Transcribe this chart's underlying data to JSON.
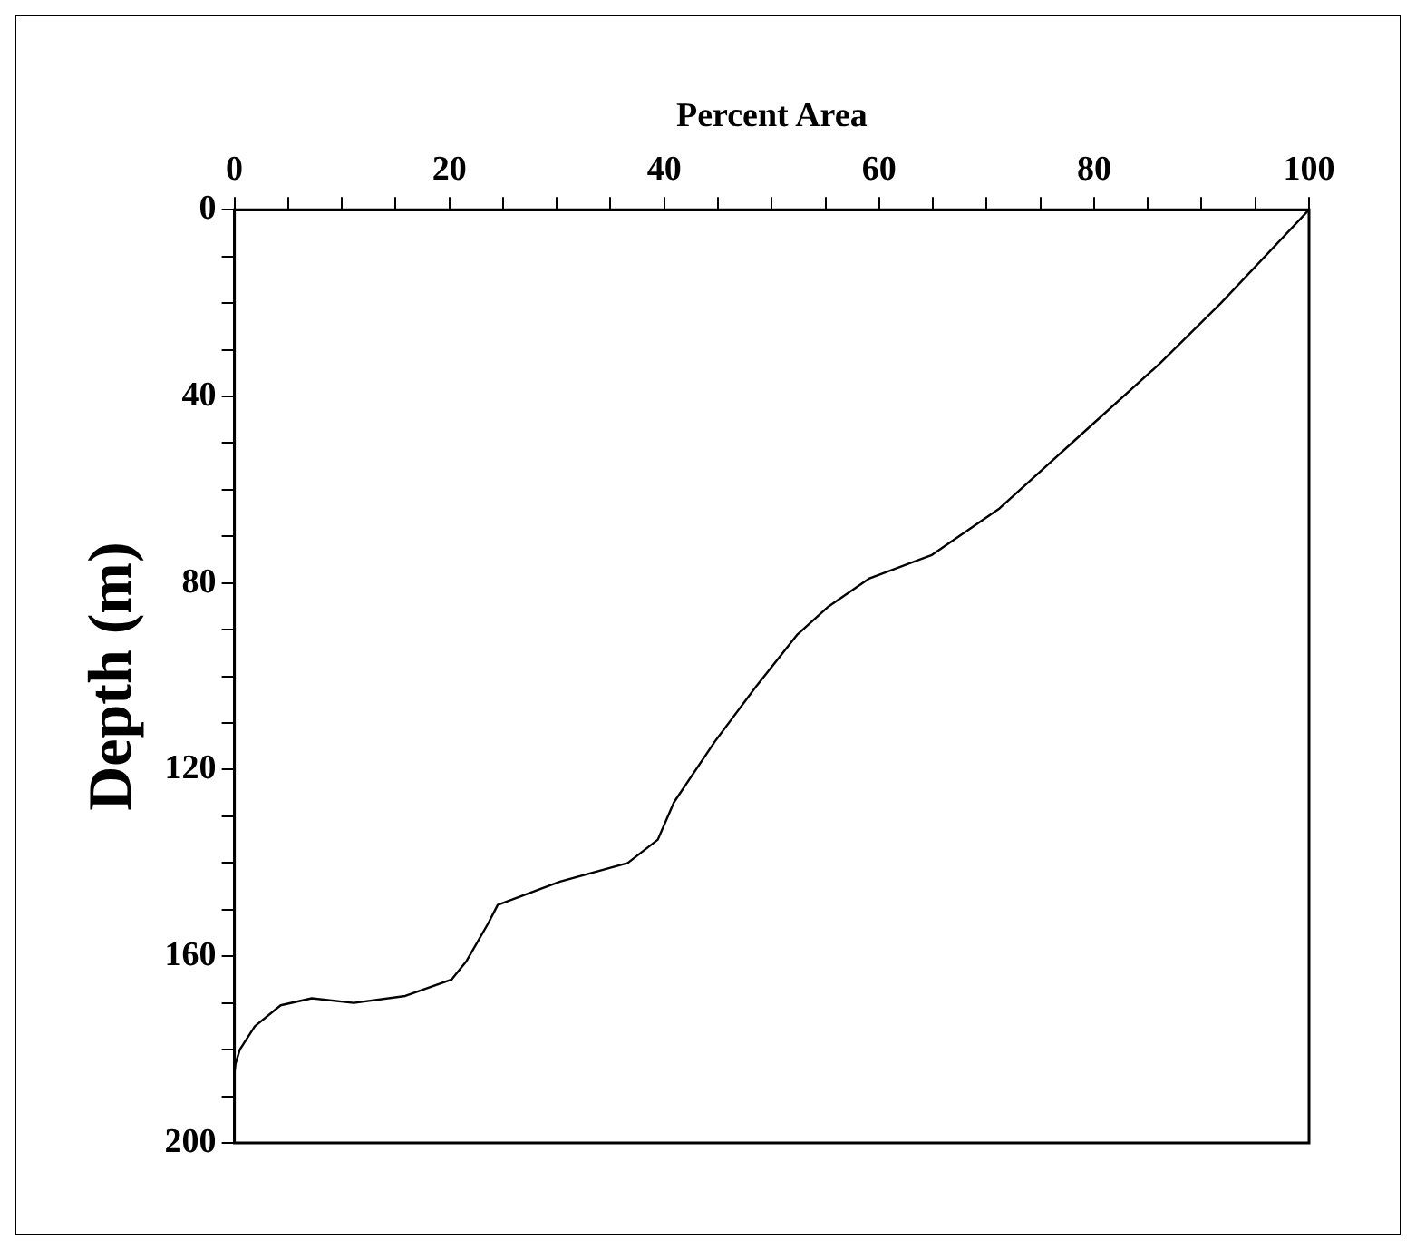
{
  "chart_data": {
    "type": "line",
    "xlabel": "Percent Area",
    "ylabel": "Depth (m)",
    "x": [
      100,
      91.8,
      86.1,
      78.4,
      71.2,
      64.9,
      59.1,
      55.3,
      52.4,
      48.6,
      44.7,
      40.9,
      39.4,
      36.6,
      30.3,
      24.5,
      23.6,
      21.6,
      20.2,
      15.9,
      11.1,
      7.2,
      4.3,
      1.9,
      0.5,
      0.1,
      0
    ],
    "series": [
      {
        "color": "#000000",
        "values": [
          0,
          20,
          33,
          49,
          64,
          74,
          79,
          85,
          91,
          102,
          114,
          127,
          135,
          140,
          144,
          149,
          153,
          161,
          165,
          168.5,
          170,
          169,
          170.5,
          175,
          180,
          183,
          185
        ]
      }
    ],
    "xlim": [
      0,
      100
    ],
    "ylim": [
      200,
      0
    ],
    "xticks": [
      0,
      {
        "value": 5,
        "label": null
      },
      {
        "value": 10,
        "label": null
      },
      {
        "value": 15,
        "label": null
      },
      20,
      {
        "value": 25,
        "label": null
      },
      {
        "value": 30,
        "label": null
      },
      {
        "value": 35,
        "label": null
      },
      40,
      {
        "value": 45,
        "label": null
      },
      {
        "value": 50,
        "label": null
      },
      {
        "value": 55,
        "label": null
      },
      60,
      {
        "value": 65,
        "label": null
      },
      {
        "value": 70,
        "label": null
      },
      {
        "value": 75,
        "label": null
      },
      80,
      {
        "value": 85,
        "label": null
      },
      {
        "value": 90,
        "label": null
      },
      {
        "value": 95,
        "label": null
      },
      100
    ],
    "yticks": [
      0,
      {
        "value": 10,
        "label": null
      },
      {
        "value": 20,
        "label": null
      },
      {
        "value": 30,
        "label": null
      },
      40,
      {
        "value": 50,
        "label": null
      },
      {
        "value": 60,
        "label": null
      },
      {
        "value": 70,
        "label": null
      },
      80,
      {
        "value": 90,
        "label": null
      },
      {
        "value": 100,
        "label": null
      },
      {
        "value": 110,
        "label": null
      },
      120,
      {
        "value": 130,
        "label": null
      },
      {
        "value": 140,
        "label": null
      },
      {
        "value": 150,
        "label": null
      },
      160,
      {
        "value": 170,
        "label": null
      },
      {
        "value": 180,
        "label": null
      },
      {
        "value": 190,
        "label": null
      },
      200
    ],
    "grid": false,
    "legend": false,
    "marker": "none",
    "line_style": "solid"
  }
}
